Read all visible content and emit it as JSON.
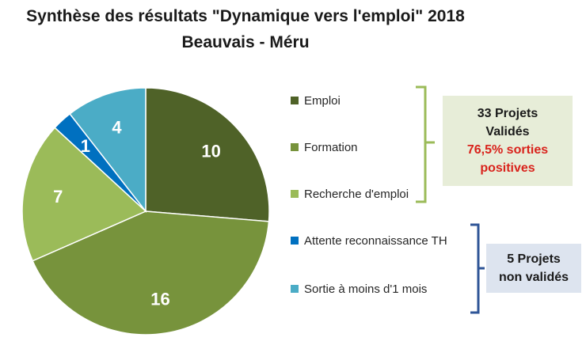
{
  "title": {
    "line1": "Synthèse des résultats \"Dynamique vers l'emploi\" 2018",
    "line2": "Beauvais - Méru"
  },
  "chart_data": {
    "type": "pie",
    "title": "Synthèse des résultats \"Dynamique vers l'emploi\" 2018 - Beauvais - Méru",
    "legend_position": "right",
    "slices": [
      {
        "label": "Emploi",
        "value": 10,
        "color": "#4f6228"
      },
      {
        "label": "Formation",
        "value": 16,
        "color": "#77933c"
      },
      {
        "label": "Recherche d'emploi",
        "value": 7,
        "color": "#9bbb59"
      },
      {
        "label": "Attente reconnaissance TH",
        "value": 1,
        "color": "#0070c0"
      },
      {
        "label": "Sortie à moins d'1 mois",
        "value": 4,
        "color": "#4bacc6"
      }
    ]
  },
  "annotations": {
    "valid": {
      "line1": "33 Projets",
      "line2": "Validés",
      "line3": "76,5%  sorties",
      "line4": "positives",
      "bracket_color": "#9bbb59",
      "background": "#e7edd8",
      "highlight_color": "#d9231c"
    },
    "invalid": {
      "line1": "5 Projets",
      "line2": "non validés",
      "bracket_color": "#2f5597",
      "background": "#dde4ef"
    }
  }
}
